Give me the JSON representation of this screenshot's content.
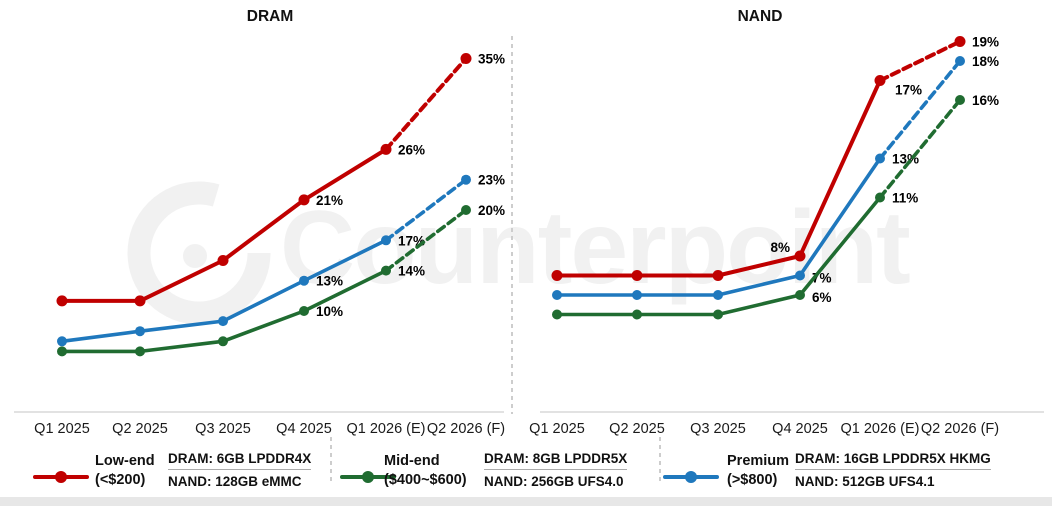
{
  "watermark": {
    "text": "Counterpoint"
  },
  "chart_data": [
    {
      "type": "line",
      "title": "DRAM",
      "categories": [
        "Q1 2025",
        "Q2 2025",
        "Q3 2025",
        "Q4 2025",
        "Q1 2026 (E)",
        "Q2 2026 (F)"
      ],
      "unit": "%",
      "ylim": [
        0,
        37
      ],
      "grid": false,
      "dashed_from_index": 4,
      "series": [
        {
          "name": "Low-end",
          "color": "#C00000",
          "values": [
            11,
            11,
            15,
            21,
            26,
            35
          ],
          "labels": [
            null,
            null,
            null,
            "21%",
            "26%",
            "35%"
          ]
        },
        {
          "name": "Premium",
          "color": "#1F78BD",
          "values": [
            7,
            8,
            9,
            13,
            17,
            23
          ],
          "labels": [
            null,
            null,
            null,
            "13%",
            "17%",
            "23%"
          ]
        },
        {
          "name": "Mid-end",
          "color": "#206C31",
          "values": [
            6,
            6,
            7,
            10,
            14,
            20
          ],
          "labels": [
            null,
            null,
            null,
            "10%",
            "14%",
            "20%"
          ]
        }
      ]
    },
    {
      "type": "line",
      "title": "NAND",
      "categories": [
        "Q1 2025",
        "Q2 2025",
        "Q3 2025",
        "Q4 2025",
        "Q1 2026 (E)",
        "Q2 2026 (F)"
      ],
      "unit": "%",
      "ylim": [
        0,
        21
      ],
      "grid": false,
      "dashed_from_index": 4,
      "series": [
        {
          "name": "Low-end",
          "color": "#C00000",
          "values": [
            7,
            7,
            7,
            8,
            17,
            19
          ],
          "labels": [
            null,
            null,
            null,
            "8%",
            "17%",
            "19%"
          ]
        },
        {
          "name": "Premium",
          "color": "#1F78BD",
          "values": [
            6,
            6,
            6,
            7,
            13,
            18
          ],
          "labels": [
            null,
            null,
            null,
            "7%",
            "13%",
            "18%"
          ]
        },
        {
          "name": "Mid-end",
          "color": "#206C31",
          "values": [
            5,
            5,
            5,
            6,
            11,
            16
          ],
          "labels": [
            null,
            null,
            null,
            "6%",
            "11%",
            "16%"
          ]
        }
      ]
    }
  ],
  "legend": {
    "items": [
      {
        "label_line1": "Low-end",
        "label_line2": "(<$200)",
        "color": "#C00000",
        "dram_spec": "DRAM: 6GB LPDDR4X",
        "nand_spec": "NAND: 128GB eMMC"
      },
      {
        "label_line1": "Mid-end",
        "label_line2": "($400~$600)",
        "color": "#206C31",
        "dram_spec": "DRAM: 8GB LPDDR5X",
        "nand_spec": "NAND: 256GB UFS4.0"
      },
      {
        "label_line1": "Premium",
        "label_line2": "(>$800)",
        "color": "#1F78BD",
        "dram_spec": "DRAM: 16GB LPDDR5X HKMG",
        "nand_spec": "NAND: 512GB UFS4.1"
      }
    ]
  }
}
